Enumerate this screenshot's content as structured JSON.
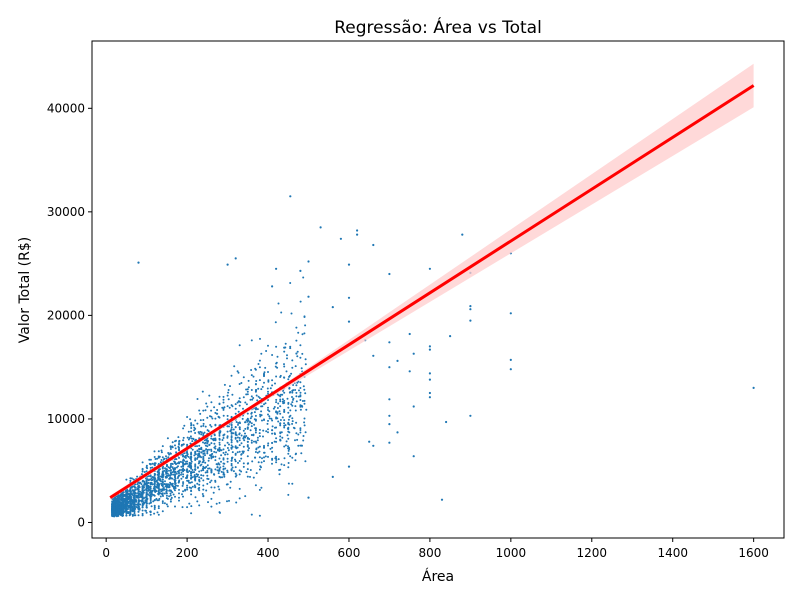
{
  "chart_data": {
    "type": "scatter",
    "title": "Regressão: Área vs Total",
    "xlabel": "Área",
    "ylabel": "Valor Total (R$)",
    "xlim": [
      -35,
      1675
    ],
    "ylim": [
      -1500,
      46500
    ],
    "xticks": [
      "0",
      "200",
      "400",
      "600",
      "800",
      "1000",
      "1200",
      "1400",
      "1600"
    ],
    "yticks": [
      "0",
      "10000",
      "20000",
      "30000",
      "40000"
    ],
    "grid": false,
    "legend": "none",
    "colors": {
      "points": "#1f77b4",
      "regression": "#ff0000",
      "ci_band": "#ffcccc"
    },
    "series": [
      {
        "kind": "regression",
        "points": [
          [
            10,
            2400
          ],
          [
            1600,
            42200
          ]
        ],
        "ci_lower": [
          [
            10,
            2200
          ],
          [
            400,
            11900
          ],
          [
            1600,
            40100
          ]
        ],
        "ci_upper": [
          [
            10,
            2600
          ],
          [
            400,
            12300
          ],
          [
            1600,
            44300
          ]
        ]
      },
      {
        "kind": "scatter_outliers",
        "points": [
          [
            455,
            31500
          ],
          [
            530,
            28500
          ],
          [
            620,
            28200
          ],
          [
            620,
            27800
          ],
          [
            580,
            27400
          ],
          [
            660,
            26800
          ],
          [
            880,
            27800
          ],
          [
            1000,
            26000
          ],
          [
            900,
            24100
          ],
          [
            80,
            25100
          ],
          [
            320,
            25500
          ],
          [
            300,
            24900
          ],
          [
            500,
            25200
          ],
          [
            480,
            24300
          ],
          [
            600,
            24900
          ],
          [
            420,
            24500
          ],
          [
            410,
            22800
          ],
          [
            700,
            24000
          ],
          [
            800,
            24500
          ],
          [
            900,
            20900
          ],
          [
            900,
            20600
          ],
          [
            900,
            19500
          ],
          [
            1000,
            20200
          ],
          [
            1000,
            15700
          ],
          [
            1000,
            14800
          ],
          [
            900,
            10300
          ],
          [
            840,
            9700
          ],
          [
            830,
            2200
          ],
          [
            1600,
            13000
          ],
          [
            750,
            14600
          ],
          [
            760,
            11200
          ],
          [
            800,
            14400
          ],
          [
            800,
            13800
          ],
          [
            800,
            12500
          ],
          [
            800,
            12100
          ],
          [
            700,
            11900
          ],
          [
            700,
            10300
          ],
          [
            700,
            9500
          ],
          [
            720,
            8700
          ],
          [
            700,
            7700
          ],
          [
            760,
            6400
          ],
          [
            650,
            7800
          ],
          [
            660,
            7400
          ],
          [
            600,
            5400
          ],
          [
            560,
            4400
          ],
          [
            500,
            2400
          ],
          [
            850,
            18000
          ],
          [
            800,
            17000
          ],
          [
            800,
            16700
          ],
          [
            750,
            18200
          ],
          [
            700,
            17400
          ],
          [
            640,
            17600
          ],
          [
            600,
            19400
          ],
          [
            560,
            20800
          ],
          [
            500,
            21800
          ],
          [
            600,
            21700
          ],
          [
            660,
            16100
          ],
          [
            720,
            15600
          ],
          [
            760,
            16300
          ],
          [
            700,
            15000
          ]
        ]
      }
    ]
  }
}
